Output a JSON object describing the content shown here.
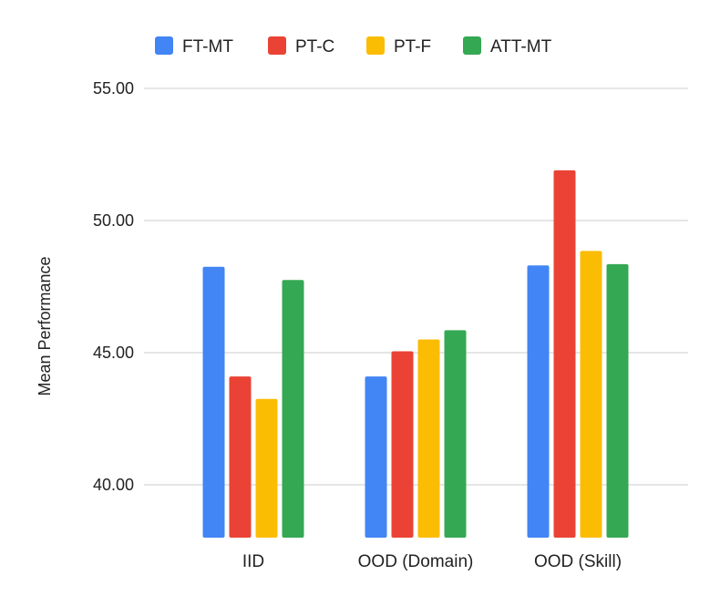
{
  "chart_data": {
    "type": "bar",
    "title": "",
    "xlabel": "",
    "ylabel": "Mean Performance",
    "ylim": [
      38.0,
      55.0
    ],
    "yticks": [
      "40.00",
      "45.00",
      "50.00",
      "55.00"
    ],
    "grid": true,
    "legend_position": "top",
    "categories": [
      "IID",
      "OOD (Domain)",
      "OOD (Skill)"
    ],
    "series": [
      {
        "name": "FT-MT",
        "color": "#4285f4",
        "values": [
          48.25,
          44.1,
          48.3
        ]
      },
      {
        "name": "PT-C",
        "color": "#ea4335",
        "values": [
          44.1,
          45.05,
          51.9
        ]
      },
      {
        "name": "PT-F",
        "color": "#fbbc04",
        "values": [
          43.25,
          45.5,
          48.85
        ]
      },
      {
        "name": "ATT-MT",
        "color": "#34a853",
        "values": [
          47.75,
          45.85,
          48.35
        ]
      }
    ]
  }
}
